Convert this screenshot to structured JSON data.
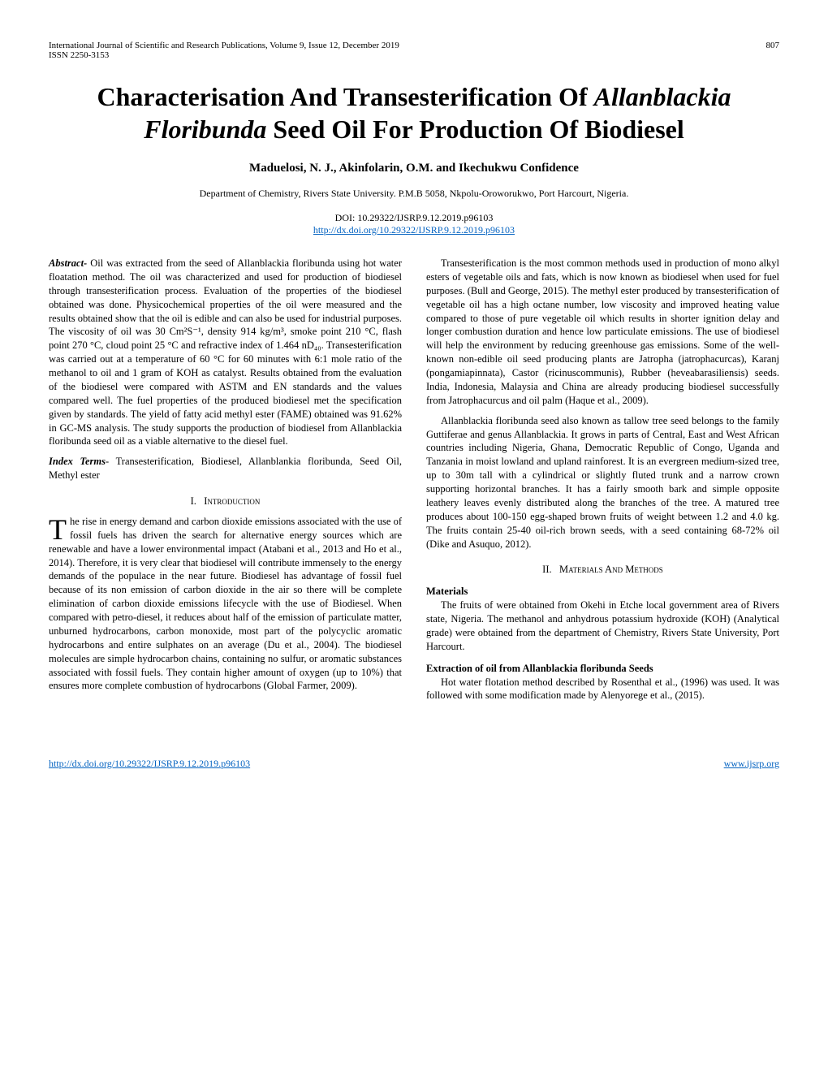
{
  "header": {
    "journal_line": "International Journal of Scientific and Research Publications, Volume 9, Issue 12, December 2019",
    "page_number": "807",
    "issn": "ISSN 2250-3153"
  },
  "title": {
    "line1": "Characterisation And Transesterification Of ",
    "line2_italic": "Allanblackia Floribunda",
    "line2_rest": " Seed Oil For Production Of Biodiesel"
  },
  "authors": "Maduelosi, N. J., Akinfolarin, O.M. and Ikechukwu  Confidence",
  "affiliation": "Department of Chemistry, Rivers State University. P.M.B 5058, Nkpolu-Oroworukwo, Port Harcourt, Nigeria.",
  "doi": "DOI: 10.29322/IJSRP.9.12.2019.p96103",
  "doi_url": "http://dx.doi.org/10.29322/IJSRP.9.12.2019.p96103",
  "abstract": {
    "label": "Abstract- ",
    "text": "Oil was extracted from the seed of Allanblackia floribunda using hot water floatation method. The oil was characterized and used for production of biodiesel through transesterification process. Evaluation of the properties of the biodiesel obtained was done. Physicochemical properties of the oil were measured and the results obtained show that the oil is edible and can also be used for industrial purposes. The viscosity of oil was 30 Cm²S⁻¹, density 914 kg/m³, smoke point 210 °C, flash point 270 °C, cloud point 25 °C and refractive index of 1.464 nD₄₀. Transesterification was carried out at a temperature of 60 °C for 60 minutes with 6:1 mole ratio of the methanol to oil and 1 gram of KOH as catalyst. Results obtained from the evaluation of the biodiesel were compared with ASTM and EN standards and the values compared well. The fuel properties of the produced biodiesel met the specification given by standards. The yield of fatty acid methyl ester (FAME) obtained was 91.62% in GC-MS analysis. The study supports the production of biodiesel from Allanblackia floribunda seed oil as a viable alternative to the diesel fuel."
  },
  "index_terms": {
    "label": "Index Terms",
    "text": "- Transesterification, Biodiesel, Allanblankia floribunda, Seed Oil, Methyl ester"
  },
  "sections": {
    "intro_num": "I.",
    "intro_name": "Introduction",
    "intro_dropcap": "T",
    "intro_p1": "he rise in energy demand and carbon dioxide emissions associated with the use of fossil fuels has driven the search for alternative energy sources which are renewable and have a lower environmental impact (Atabani et al., 2013 and Ho et al., 2014). Therefore, it is very clear that biodiesel will contribute immensely to the energy demands of the populace in the near future. Biodiesel has advantage of fossil fuel because of its non emission of carbon dioxide in the air so there will be complete elimination of carbon dioxide emissions lifecycle with the use of Biodiesel. When compared with petro-diesel, it reduces about half of the emission of particulate matter, unburned hydrocarbons, carbon monoxide, most part of the polycyclic aromatic hydrocarbons and entire sulphates on an average (Du et al., 2004). The biodiesel molecules are simple hydrocarbon chains, containing no sulfur, or aromatic substances associated with fossil fuels. They contain higher amount of oxygen (up to 10%) that ensures more complete combustion of hydrocarbons (Global Farmer, 2009).",
    "col2_p1": "Transesterification is the most common methods used in production of mono alkyl esters of vegetable oils and fats, which is now known as biodiesel when used for fuel purposes. (Bull and George, 2015). The methyl ester produced by transesterification of vegetable oil has a high octane number, low viscosity and improved heating value compared to those of pure vegetable oil which results in shorter ignition delay and longer combustion duration and hence low particulate emissions. The use of biodiesel will help the environment by reducing greenhouse gas emissions. Some of the well-known non-edible oil seed producing plants are Jatropha (jatrophacurcas), Karanj (pongamiapinnata), Castor (ricinuscommunis), Rubber (heveabarasiliensis) seeds. India, Indonesia, Malaysia and China are already producing biodiesel successfully from Jatrophacurcus and oil palm (Haque et al., 2009).",
    "col2_p2": "Allanblackia floribunda seed also known as tallow tree seed belongs to the family Guttiferae and genus Allanblackia. It grows in parts of Central, East and West African countries including Nigeria, Ghana, Democratic Republic of Congo, Uganda and Tanzania in moist lowland and upland rainforest.  It is an evergreen medium-sized tree, up to 30m tall with a cylindrical or slightly fluted trunk and a narrow crown supporting horizontal branches.  It has a fairly smooth bark and simple opposite leathery leaves evenly distributed along the branches of the tree. A matured tree produces about 100-150 egg-shaped brown fruits of weight between 1.2 and 4.0 kg. The fruits contain 25-40 oil-rich brown seeds, with a seed containing 68-72% oil (Dike and Asuquo, 2012).",
    "methods_num": "II.",
    "methods_name": "Materials And Methods",
    "materials_heading": "Materials",
    "materials_text": "The fruits of were obtained from Okehi in Etche local government area of Rivers state, Nigeria.  The methanol and anhydrous potassium hydroxide (KOH) (Analytical grade) were obtained from the department of Chemistry, Rivers State University, Port Harcourt.",
    "extraction_heading": "Extraction of oil from Allanblackia floribunda Seeds",
    "extraction_text": "Hot water flotation method described by Rosenthal et al., (1996) was used. It was followed with some modification made by Alenyorege et al., (2015)."
  },
  "footer": {
    "left_url": "http://dx.doi.org/10.29322/IJSRP.9.12.2019.p96103",
    "right_url": "www.ijsrp.org"
  },
  "colors": {
    "link": "#0563c1",
    "text": "#000000",
    "background": "#ffffff"
  }
}
